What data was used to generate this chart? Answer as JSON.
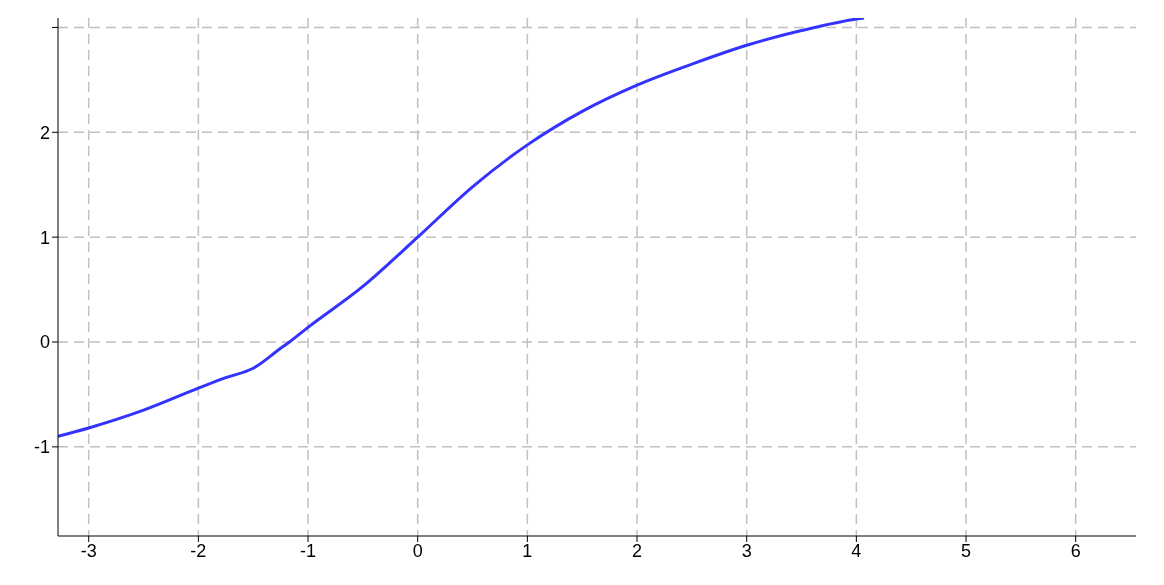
{
  "chart_data": {
    "type": "line",
    "x": [
      -3.28,
      -3,
      -2.5,
      -2,
      -1.75,
      -1.5,
      -1.25,
      -1.17,
      -1,
      -0.5,
      0,
      0.5,
      1,
      1.5,
      2,
      2.5,
      3,
      3.5,
      4,
      4.07
    ],
    "series": [
      {
        "color": "#3333ff",
        "values": [
          -0.9,
          -0.82,
          -0.65,
          -0.44,
          -0.34,
          -0.25,
          -0.06,
          0,
          0.14,
          0.53,
          1,
          1.48,
          1.88,
          2.2,
          2.45,
          2.65,
          2.83,
          2.97,
          3.08,
          3.09
        ]
      }
    ],
    "xlim": [
      -3.28,
      6.55
    ],
    "ylim": [
      -1.85,
      3.09
    ],
    "xticks": [
      -3,
      -2,
      -1,
      0,
      1,
      2,
      3,
      4,
      5,
      6
    ],
    "yticks": [
      -1,
      0,
      1,
      2,
      {
        "value": 3,
        "label": null
      }
    ],
    "grid": true,
    "marker": "none",
    "line_style": "solid",
    "legend": false
  }
}
